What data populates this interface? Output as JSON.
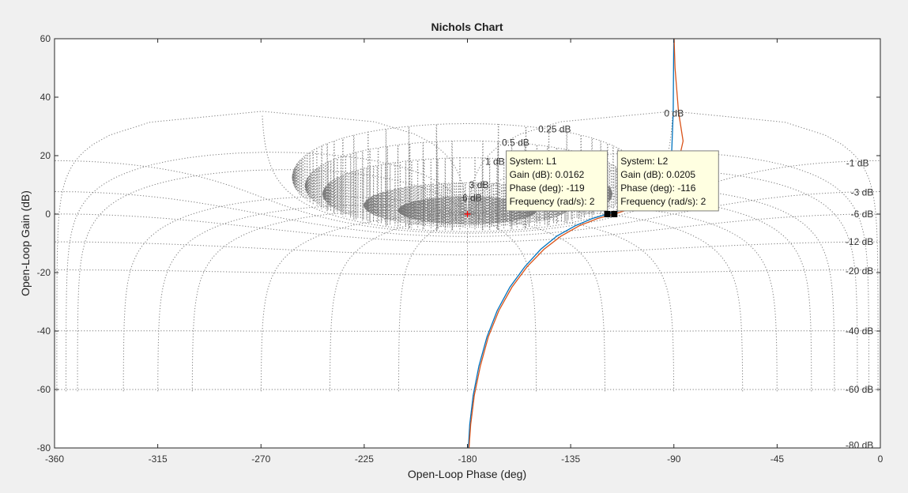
{
  "chart_data": {
    "type": "line",
    "title": "Nichols Chart",
    "xlabel": "Open-Loop Phase (deg)",
    "ylabel": "Open-Loop Gain (dB)",
    "xlim": [
      -360,
      0
    ],
    "ylim": [
      -80,
      60
    ],
    "xticks": [
      -360,
      -315,
      -270,
      -225,
      -180,
      -135,
      -90,
      -45,
      0
    ],
    "yticks": [
      -80,
      -60,
      -40,
      -20,
      0,
      20,
      40,
      60
    ],
    "grid": "on",
    "grid_type": "nichols",
    "closed_loop_gain_labels": [
      {
        "text": "0 dB",
        "phase": -90,
        "gain": 34.5
      },
      {
        "text": "0.25 dB",
        "phase": -142,
        "gain": 29
      },
      {
        "text": "0.5 dB",
        "phase": -159,
        "gain": 24.5
      },
      {
        "text": "1 dB",
        "phase": -168,
        "gain": 18
      },
      {
        "text": "3 dB",
        "phase": -175,
        "gain": 10
      },
      {
        "text": "6 dB",
        "phase": -178,
        "gain": 5.5
      },
      {
        "text": "-1 dB",
        "phase": -5,
        "gain": 17.5
      },
      {
        "text": "-3 dB",
        "phase": -3,
        "gain": 7.5
      },
      {
        "text": "-6 dB",
        "phase": -3,
        "gain": 0
      },
      {
        "text": "-12 dB",
        "phase": -3,
        "gain": -9.5
      },
      {
        "text": "-20 dB",
        "phase": -3,
        "gain": -19.5
      },
      {
        "text": "-40 dB",
        "phase": -3,
        "gain": -40
      },
      {
        "text": "-60 dB",
        "phase": -3,
        "gain": -60
      },
      {
        "text": "-80 dB",
        "phase": -3,
        "gain": -79
      }
    ],
    "critical_point": {
      "phase": -180,
      "gain": 0
    },
    "series": [
      {
        "name": "L1",
        "color": "#0072bd",
        "points": [
          [
            -179.6,
            -80
          ],
          [
            -179,
            -72
          ],
          [
            -177.5,
            -62
          ],
          [
            -175,
            -52
          ],
          [
            -171.5,
            -42
          ],
          [
            -167,
            -33
          ],
          [
            -161.5,
            -25
          ],
          [
            -155,
            -18
          ],
          [
            -148,
            -12
          ],
          [
            -141,
            -7.5
          ],
          [
            -133,
            -4
          ],
          [
            -125.5,
            -1.5
          ],
          [
            -119,
            0.0162
          ],
          [
            -110,
            2
          ],
          [
            -100,
            5
          ],
          [
            -94,
            10
          ],
          [
            -91,
            20
          ],
          [
            -90.3,
            35
          ],
          [
            -90.05,
            60
          ]
        ]
      },
      {
        "name": "L2",
        "color": "#d95319",
        "points": [
          [
            -179.3,
            -80
          ],
          [
            -178.6,
            -72
          ],
          [
            -177,
            -62
          ],
          [
            -174.4,
            -52
          ],
          [
            -170.9,
            -42
          ],
          [
            -166.3,
            -33
          ],
          [
            -160.6,
            -25
          ],
          [
            -154,
            -18
          ],
          [
            -146.6,
            -12
          ],
          [
            -139.3,
            -7.6
          ],
          [
            -131.3,
            -4
          ],
          [
            -123.2,
            -1.5
          ],
          [
            -116,
            0.0205
          ],
          [
            -106,
            2.5
          ],
          [
            -96,
            8
          ],
          [
            -88,
            18
          ],
          [
            -86,
            25
          ],
          [
            -88,
            35
          ],
          [
            -89.5,
            50
          ],
          [
            -89.9,
            60
          ]
        ]
      }
    ],
    "datatips": [
      {
        "system": "System: L1",
        "gain": "Gain (dB): 0.0162",
        "phase": "Phase (deg): -119",
        "frequency": "Frequency (rad/s): 2",
        "point_phase": -119,
        "point_gain": 0.0162,
        "anchor": "left"
      },
      {
        "system": "System: L2",
        "gain": "Gain (dB): 0.0205",
        "phase": "Phase (deg): -116",
        "frequency": "Frequency (rad/s): 2",
        "point_phase": -116,
        "point_gain": 0.0205,
        "anchor": "right"
      }
    ],
    "colors": {
      "background": "#f0f0f0",
      "axes": "#ffffff",
      "grid": "#7a7a7a",
      "tip_fill": "#ffffe1",
      "critical_marker": "#ff0000"
    }
  }
}
